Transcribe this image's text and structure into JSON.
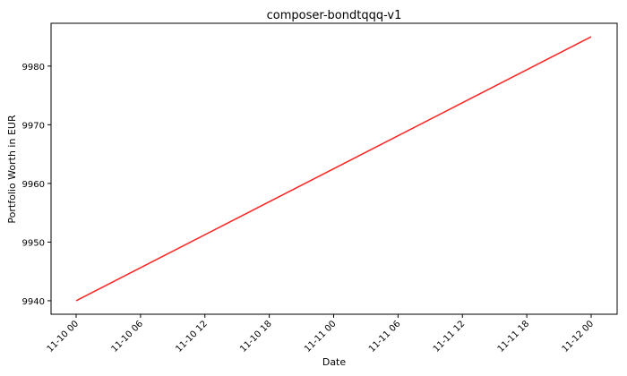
{
  "chart_data": {
    "type": "line",
    "title": "composer-bondtqqq-v1",
    "xlabel": "Date",
    "ylabel": "Portfolio Worth in EUR",
    "x_tick_labels": [
      "11-10 00",
      "11-10 06",
      "11-10 12",
      "11-10 18",
      "11-11 00",
      "11-11 06",
      "11-11 12",
      "11-11 18",
      "11-12 00"
    ],
    "y_tick_labels": [
      "9940",
      "9950",
      "9960",
      "9970",
      "9980"
    ],
    "y_ticks": [
      9940,
      9950,
      9960,
      9970,
      9980
    ],
    "ylim": [
      9937.7,
      9987.3
    ],
    "grid": false,
    "series": [
      {
        "color": "#ff0000",
        "x": [
          "11-10 00",
          "11-12 00"
        ],
        "y": [
          9940.0,
          9985.0
        ]
      }
    ]
  }
}
